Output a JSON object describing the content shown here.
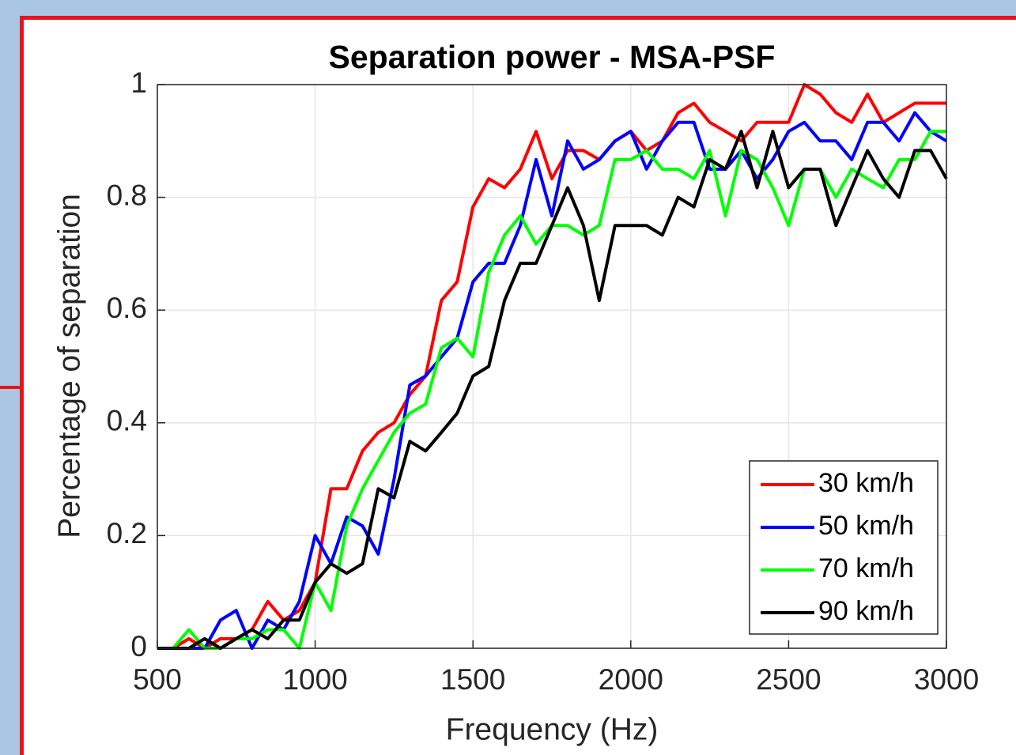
{
  "chart_data": {
    "type": "line",
    "title": "Separation power - MSA-PSF",
    "xlabel": "Frequency (Hz)",
    "ylabel": "Percentage of separation",
    "x": [
      500,
      550,
      600,
      650,
      700,
      750,
      800,
      850,
      900,
      950,
      1000,
      1050,
      1100,
      1150,
      1200,
      1250,
      1300,
      1350,
      1400,
      1450,
      1500,
      1550,
      1600,
      1650,
      1700,
      1750,
      1800,
      1850,
      1900,
      1950,
      2000,
      2050,
      2100,
      2150,
      2200,
      2250,
      2300,
      2350,
      2400,
      2450,
      2500,
      2550,
      2600,
      2650,
      2700,
      2750,
      2800,
      2850,
      2900,
      2950,
      3000
    ],
    "series": [
      {
        "name": "30 km/h",
        "color": "#ff0000",
        "values": [
          0,
          0,
          0.017,
          0,
          0.017,
          0.017,
          0.033,
          0.083,
          0.05,
          0.067,
          0.117,
          0.283,
          0.283,
          0.35,
          0.383,
          0.4,
          0.45,
          0.483,
          0.617,
          0.65,
          0.783,
          0.833,
          0.817,
          0.85,
          0.917,
          0.833,
          0.883,
          0.883,
          0.867,
          0.9,
          0.917,
          0.883,
          0.9,
          0.95,
          0.967,
          0.933,
          0.917,
          0.9,
          0.933,
          0.933,
          0.933,
          1,
          0.983,
          0.95,
          0.933,
          0.983,
          0.933,
          0.95,
          0.967,
          0.967,
          0.967
        ]
      },
      {
        "name": "50 km/h",
        "color": "#0000ff",
        "values": [
          0,
          0,
          0,
          0,
          0.05,
          0.067,
          0,
          0.05,
          0.033,
          0.083,
          0.2,
          0.15,
          0.233,
          0.217,
          0.167,
          0.3,
          0.467,
          0.483,
          0.517,
          0.55,
          0.65,
          0.683,
          0.683,
          0.75,
          0.867,
          0.767,
          0.9,
          0.85,
          0.867,
          0.9,
          0.917,
          0.85,
          0.9,
          0.933,
          0.933,
          0.85,
          0.85,
          0.883,
          0.833,
          0.867,
          0.917,
          0.933,
          0.9,
          0.9,
          0.867,
          0.933,
          0.933,
          0.9,
          0.95,
          0.917,
          0.9
        ]
      },
      {
        "name": "70 km/h",
        "color": "#00ff00",
        "values": [
          0,
          0,
          0.033,
          0,
          0,
          0.017,
          0.017,
          0.033,
          0.033,
          0,
          0.117,
          0.067,
          0.217,
          0.283,
          0.333,
          0.383,
          0.417,
          0.433,
          0.533,
          0.55,
          0.517,
          0.667,
          0.733,
          0.767,
          0.717,
          0.75,
          0.75,
          0.733,
          0.75,
          0.867,
          0.867,
          0.883,
          0.85,
          0.85,
          0.833,
          0.883,
          0.767,
          0.883,
          0.867,
          0.817,
          0.75,
          0.85,
          0.85,
          0.8,
          0.85,
          0.833,
          0.817,
          0.867,
          0.867,
          0.917,
          0.917
        ]
      },
      {
        "name": "90 km/h",
        "color": "#000000",
        "values": [
          0,
          0,
          0,
          0.017,
          0,
          0.017,
          0.033,
          0.017,
          0.05,
          0.05,
          0.117,
          0.15,
          0.133,
          0.15,
          0.283,
          0.267,
          0.367,
          0.35,
          0.383,
          0.417,
          0.483,
          0.5,
          0.617,
          0.683,
          0.683,
          0.75,
          0.817,
          0.75,
          0.617,
          0.75,
          0.75,
          0.75,
          0.733,
          0.8,
          0.783,
          0.867,
          0.85,
          0.917,
          0.817,
          0.917,
          0.817,
          0.85,
          0.85,
          0.75,
          0.817,
          0.883,
          0.833,
          0.8,
          0.883,
          0.883,
          0.833
        ]
      }
    ],
    "xlim": [
      500,
      3000
    ],
    "xticks": [
      500,
      1000,
      1500,
      2000,
      2500,
      3000
    ],
    "ylim": [
      0,
      1
    ],
    "yticks": [
      0,
      0.2,
      0.4,
      0.6,
      0.8,
      1
    ],
    "grid": true,
    "legend": "southeast"
  }
}
